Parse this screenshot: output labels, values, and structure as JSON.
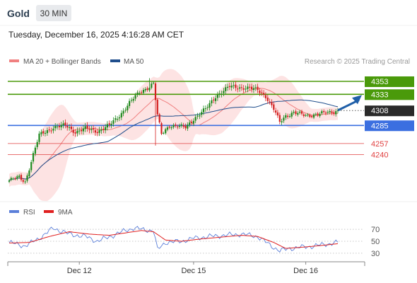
{
  "header": {
    "symbol": "Gold",
    "timeframe": "30 MIN",
    "datetime": "Tuesday, December 16, 2025 4:16:28 AM CET"
  },
  "legend": {
    "items": [
      {
        "label": "MA 20 + Bollinger Bands",
        "color": "#f08080"
      },
      {
        "label": "MA 50",
        "color": "#1f4e8c"
      }
    ],
    "credit": "Research © 2025 Trading Central"
  },
  "colors": {
    "green_level": "#4a9a0a",
    "blue_level": "#3b6fe0",
    "red_level": "#e04040",
    "current_price_bg": "#2a2a2a",
    "candle_up": "#1e8a1e",
    "candle_down": "#d42020",
    "ma20": "#f08080",
    "band_fill": "#fde0e0",
    "ma50": "#1f4e8c",
    "rsi": "#5b7fd9",
    "rsi_ma": "#e02020",
    "arrow": "#1f5fa8"
  },
  "chart_data": [
    {
      "type": "candlestick",
      "price_range": [
        4175,
        4365
      ],
      "x_ticks": [
        "Dec 12",
        "Dec 15",
        "Dec 16"
      ],
      "levels": [
        {
          "value": 4353,
          "label": "4353",
          "kind": "resistance",
          "color": "green"
        },
        {
          "value": 4333,
          "label": "4333",
          "kind": "resistance",
          "color": "green"
        },
        {
          "value": 4308,
          "label": "4308",
          "kind": "current_price",
          "color": "dark"
        },
        {
          "value": 4285,
          "label": "4285",
          "kind": "pivot",
          "color": "blue"
        },
        {
          "value": 4257,
          "label": "4257",
          "kind": "support",
          "color": "red"
        },
        {
          "value": 4240,
          "label": "4240",
          "kind": "support",
          "color": "red"
        }
      ],
      "arrow": {
        "direction": "up",
        "target": 4333
      },
      "close_anchors": [
        [
          0,
          4200
        ],
        [
          5,
          4205
        ],
        [
          8,
          4198
        ],
        [
          12,
          4240
        ],
        [
          15,
          4270
        ],
        [
          22,
          4282
        ],
        [
          28,
          4285
        ],
        [
          33,
          4275
        ],
        [
          38,
          4280
        ],
        [
          44,
          4276
        ],
        [
          50,
          4285
        ],
        [
          55,
          4300
        ],
        [
          60,
          4320
        ],
        [
          65,
          4336
        ],
        [
          70,
          4345
        ],
        [
          72,
          4350
        ],
        [
          74,
          4300
        ],
        [
          76,
          4272
        ],
        [
          80,
          4285
        ],
        [
          88,
          4282
        ],
        [
          92,
          4295
        ],
        [
          98,
          4310
        ],
        [
          103,
          4330
        ],
        [
          110,
          4345
        ],
        [
          118,
          4343
        ],
        [
          124,
          4340
        ],
        [
          128,
          4330
        ],
        [
          132,
          4310
        ],
        [
          135,
          4290
        ],
        [
          138,
          4300
        ],
        [
          142,
          4305
        ],
        [
          148,
          4300
        ],
        [
          155,
          4303
        ],
        [
          160,
          4305
        ],
        [
          164,
          4308
        ]
      ]
    },
    {
      "type": "line",
      "panel": "RSI",
      "legend": [
        "RSI",
        "9MA"
      ],
      "y_ticks": [
        70,
        50,
        30
      ],
      "y_range": [
        18,
        82
      ],
      "rsi_anchors": [
        [
          0,
          48
        ],
        [
          8,
          42
        ],
        [
          15,
          55
        ],
        [
          22,
          72
        ],
        [
          30,
          62
        ],
        [
          38,
          58
        ],
        [
          44,
          50
        ],
        [
          52,
          60
        ],
        [
          58,
          68
        ],
        [
          62,
          72
        ],
        [
          68,
          69
        ],
        [
          72,
          68
        ],
        [
          74,
          36
        ],
        [
          78,
          48
        ],
        [
          86,
          50
        ],
        [
          92,
          55
        ],
        [
          100,
          58
        ],
        [
          108,
          60
        ],
        [
          116,
          62
        ],
        [
          124,
          58
        ],
        [
          130,
          44
        ],
        [
          135,
          34
        ],
        [
          140,
          38
        ],
        [
          146,
          40
        ],
        [
          152,
          42
        ],
        [
          158,
          45
        ],
        [
          164,
          48
        ]
      ],
      "ma_anchors": [
        [
          0,
          47
        ],
        [
          10,
          48
        ],
        [
          20,
          58
        ],
        [
          30,
          66
        ],
        [
          40,
          62
        ],
        [
          50,
          60
        ],
        [
          58,
          64
        ],
        [
          66,
          68
        ],
        [
          72,
          66
        ],
        [
          78,
          52
        ],
        [
          86,
          50
        ],
        [
          96,
          54
        ],
        [
          106,
          57
        ],
        [
          116,
          60
        ],
        [
          124,
          58
        ],
        [
          132,
          48
        ],
        [
          138,
          38
        ],
        [
          146,
          40
        ],
        [
          156,
          43
        ],
        [
          164,
          46
        ]
      ]
    }
  ]
}
